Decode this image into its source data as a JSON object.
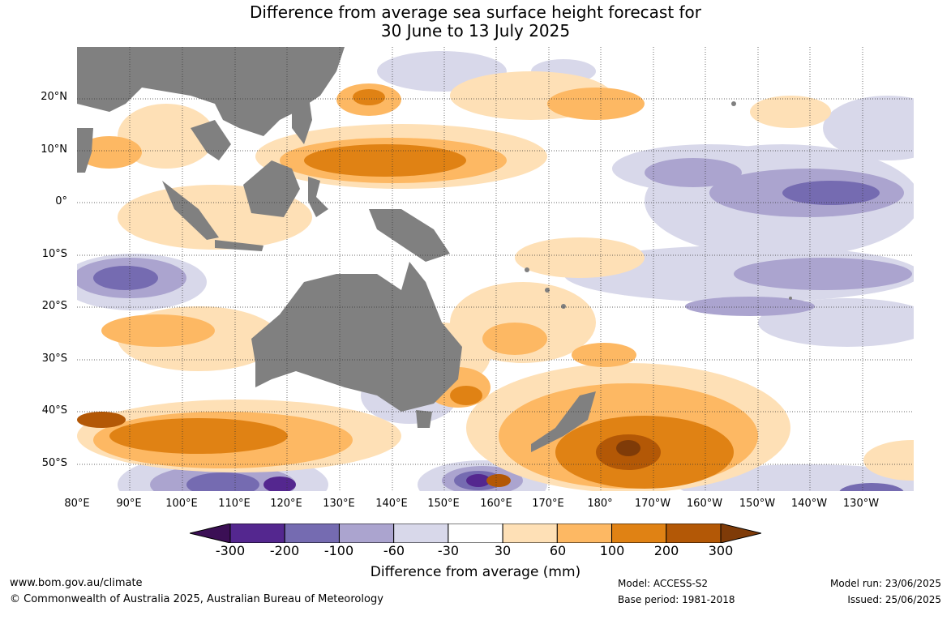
{
  "title": {
    "line1": "Difference from average sea surface height forecast for",
    "line2": "30 June to 13 July 2025"
  },
  "map": {
    "region": "Indo-Pacific",
    "land_color": "#808080",
    "ocean_color": "#ffffff",
    "grid": true,
    "lat_labels": [
      "20°N",
      "10°N",
      "0°",
      "10°S",
      "20°S",
      "30°S",
      "40°S",
      "50°S"
    ],
    "lon_labels": [
      "80°E",
      "90°E",
      "100°E",
      "110°E",
      "120°E",
      "130°E",
      "140°E",
      "150°E",
      "160°E",
      "170°E",
      "180°",
      "170°W",
      "160°W",
      "150°W",
      "140°W",
      "130°W"
    ]
  },
  "colorbar": {
    "labels": [
      "-300",
      "-200",
      "-100",
      "-60",
      "-30",
      "30",
      "60",
      "100",
      "200",
      "300"
    ],
    "colors": [
      "#3b0f55",
      "#54278f",
      "#756bb1",
      "#aba4cf",
      "#d8d8ea",
      "#ffffff",
      "#fee0b6",
      "#fdb863",
      "#e08214",
      "#b35806",
      "#7f3b08"
    ],
    "title": "Difference from average (mm)"
  },
  "footer": {
    "website": "www.bom.gov.au/climate",
    "copyright": "© Commonwealth of Australia 2025, Australian Bureau of Meteorology",
    "model": "Model: ACCESS-S2",
    "base_period": "Base period: 1981-2018",
    "model_run": "Model run: 23/06/2025",
    "issued": "Issued: 25/06/2025"
  }
}
